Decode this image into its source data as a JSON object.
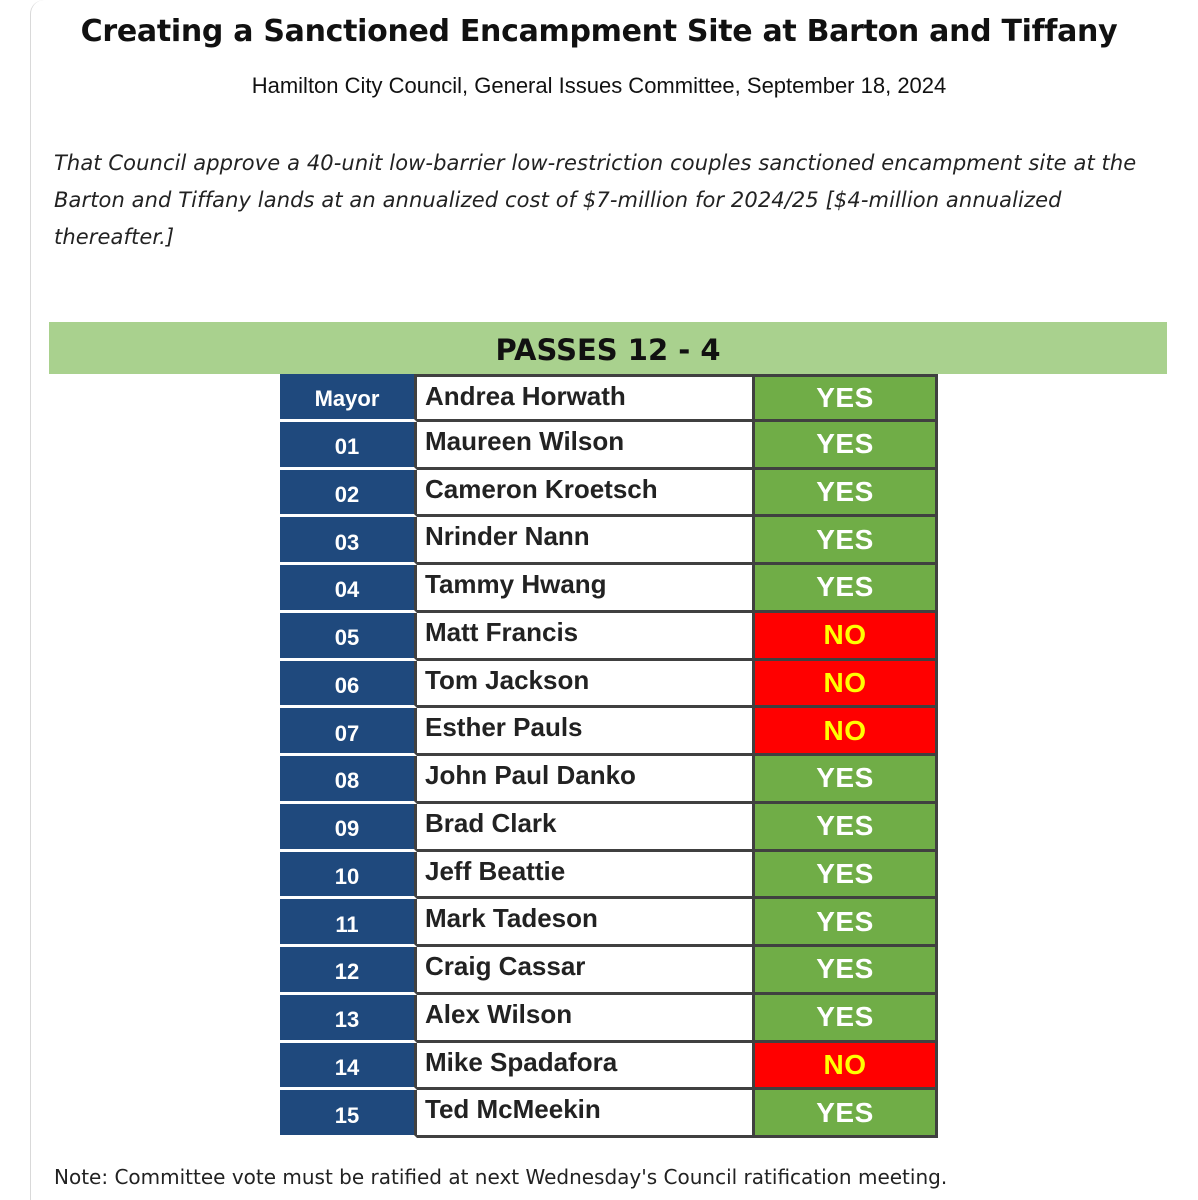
{
  "title": "Creating a Sanctioned Encampment Site at Barton and Tiffany",
  "subtitle": "Hamilton City Council, General Issues Committee, September 18, 2024",
  "motion": "That Council approve a 40-unit low-barrier low-restriction couples sanctioned encampment site at the Barton and Tiffany lands at an annualized cost of $7-million for 2024/25 [$4-million annualized thereafter.]",
  "result": "PASSES 12 - 4",
  "colors": {
    "result_bar": "#a9d18e",
    "ward_cell": "#1f497d",
    "yes": "#70ad47",
    "no": "#ff0000",
    "no_text": "#ffff00"
  },
  "votes": [
    {
      "ward": "Mayor",
      "name": "Andrea Horwath",
      "vote": "YES"
    },
    {
      "ward": "01",
      "name": "Maureen Wilson",
      "vote": "YES"
    },
    {
      "ward": "02",
      "name": "Cameron Kroetsch",
      "vote": "YES"
    },
    {
      "ward": "03",
      "name": "Nrinder Nann",
      "vote": "YES"
    },
    {
      "ward": "04",
      "name": "Tammy Hwang",
      "vote": "YES"
    },
    {
      "ward": "05",
      "name": "Matt Francis",
      "vote": "NO"
    },
    {
      "ward": "06",
      "name": "Tom Jackson",
      "vote": "NO"
    },
    {
      "ward": "07",
      "name": "Esther Pauls",
      "vote": "NO"
    },
    {
      "ward": "08",
      "name": "John Paul Danko",
      "vote": "YES"
    },
    {
      "ward": "09",
      "name": "Brad Clark",
      "vote": "YES"
    },
    {
      "ward": "10",
      "name": "Jeff Beattie",
      "vote": "YES"
    },
    {
      "ward": "11",
      "name": "Mark Tadeson",
      "vote": "YES"
    },
    {
      "ward": "12",
      "name": "Craig Cassar",
      "vote": "YES"
    },
    {
      "ward": "13",
      "name": "Alex Wilson",
      "vote": "YES"
    },
    {
      "ward": "14",
      "name": "Mike Spadafora",
      "vote": "NO"
    },
    {
      "ward": "15",
      "name": "Ted McMeekin",
      "vote": "YES"
    }
  ],
  "note": "Note: Committee vote must be ratified at next Wednesday's Council ratification meeting."
}
